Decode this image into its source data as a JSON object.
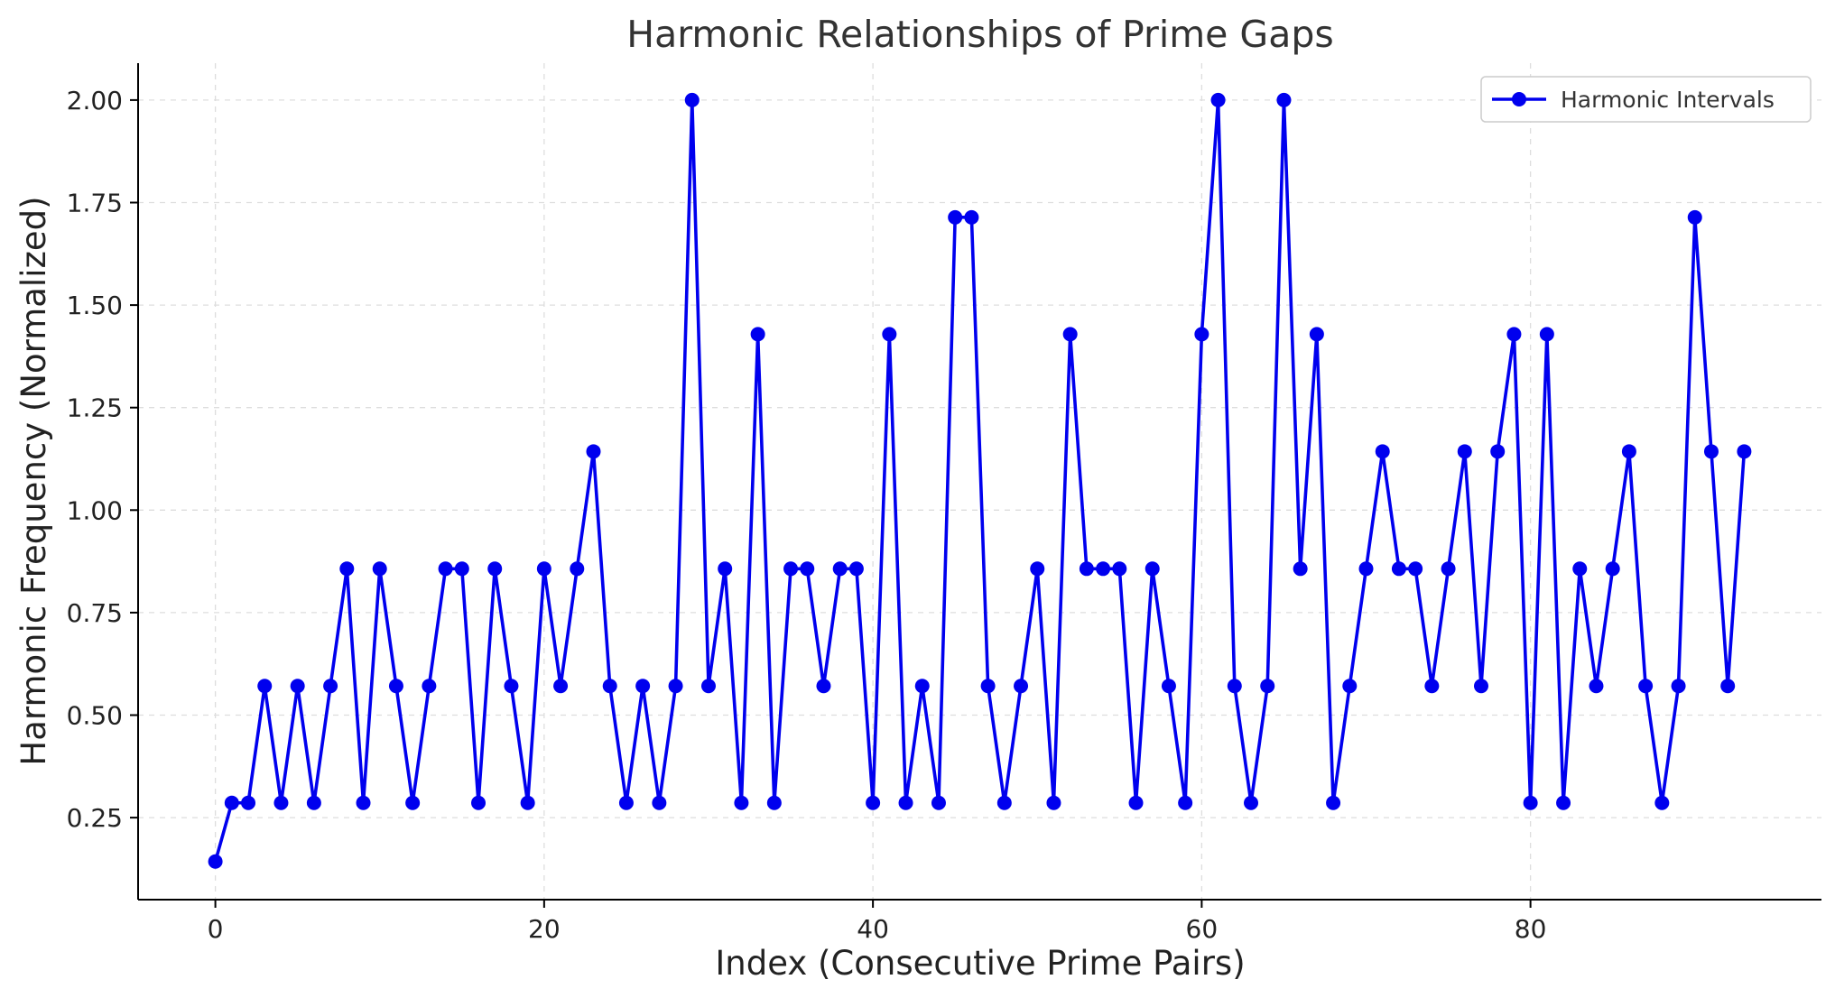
{
  "chart_data": {
    "type": "line",
    "title": "Harmonic Relationships of Prime Gaps",
    "xlabel": "Index (Consecutive Prime Pairs)",
    "ylabel": "Harmonic Frequency (Normalized)",
    "xlim": [
      -4.7,
      97.7
    ],
    "ylim": [
      0.05,
      2.09
    ],
    "xticks": [
      0,
      20,
      40,
      60,
      80
    ],
    "xtick_labels": [
      "0",
      "20",
      "40",
      "60",
      "80"
    ],
    "yticks": [
      0.25,
      0.5,
      0.75,
      1.0,
      1.25,
      1.5,
      1.75,
      2.0
    ],
    "ytick_labels": [
      "0.25",
      "0.50",
      "0.75",
      "1.00",
      "1.25",
      "1.50",
      "1.75",
      "2.00"
    ],
    "grid": true,
    "legend_position": "top-right",
    "series": [
      {
        "name": "Harmonic Intervals",
        "color": "#0000ee",
        "marker": "circle",
        "x": [
          0,
          1,
          2,
          3,
          4,
          5,
          6,
          7,
          8,
          9,
          10,
          11,
          12,
          13,
          14,
          15,
          16,
          17,
          18,
          19,
          20,
          21,
          22,
          23,
          24,
          25,
          26,
          27,
          28,
          29,
          30,
          31,
          32,
          33,
          34,
          35,
          36,
          37,
          38,
          39,
          40,
          41,
          42,
          43,
          44,
          45,
          46,
          47,
          48,
          49,
          50,
          51,
          52,
          53,
          54,
          55,
          56,
          57,
          58,
          59,
          60,
          61,
          62,
          63,
          64,
          65,
          66,
          67,
          68,
          69,
          70,
          71,
          72,
          73,
          74,
          75,
          76,
          77,
          78,
          79,
          80,
          81,
          82,
          83,
          84,
          85,
          86,
          87,
          88,
          89,
          90,
          91,
          92,
          93
        ],
        "y": [
          0.143,
          0.286,
          0.286,
          0.571,
          0.286,
          0.571,
          0.286,
          0.571,
          0.857,
          0.286,
          0.857,
          0.571,
          0.286,
          0.571,
          0.857,
          0.857,
          0.286,
          0.857,
          0.571,
          0.286,
          0.857,
          0.571,
          0.857,
          1.143,
          0.571,
          0.286,
          0.571,
          0.286,
          0.571,
          2.0,
          0.571,
          0.857,
          0.286,
          1.429,
          0.286,
          0.857,
          0.857,
          0.571,
          0.857,
          0.857,
          0.286,
          1.429,
          0.286,
          0.571,
          0.286,
          1.714,
          1.714,
          0.571,
          0.286,
          0.571,
          0.857,
          0.286,
          1.429,
          0.857,
          0.857,
          0.857,
          0.286,
          0.857,
          0.571,
          0.286,
          1.429,
          2.0,
          0.571,
          0.286,
          0.571,
          2.0,
          0.857,
          1.429,
          0.286,
          0.571,
          0.857,
          1.143,
          0.857,
          0.857,
          0.571,
          0.857,
          1.143,
          0.571,
          1.143,
          1.429,
          0.286,
          1.429,
          0.286,
          0.857,
          0.571,
          0.857,
          1.143,
          0.571,
          0.286,
          0.571,
          1.714,
          1.143,
          0.571,
          1.143
        ]
      }
    ]
  }
}
